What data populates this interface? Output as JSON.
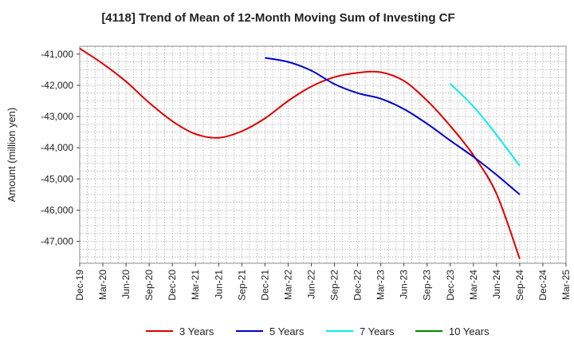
{
  "chart_data": {
    "type": "line",
    "title": "[4118]  Trend of Mean of 12-Month Moving Sum of Investing CF",
    "xlabel": "",
    "ylabel": "Amount (million yen)",
    "categories": [
      "Dec-19",
      "Mar-20",
      "Jun-20",
      "Sep-20",
      "Dec-20",
      "Mar-21",
      "Jun-21",
      "Sep-21",
      "Dec-21",
      "Mar-22",
      "Jun-22",
      "Sep-22",
      "Dec-22",
      "Mar-23",
      "Jun-23",
      "Sep-23",
      "Dec-23",
      "Mar-24",
      "Jun-24",
      "Sep-24",
      "Dec-24",
      "Mar-25"
    ],
    "ylim": [
      -47700,
      -40750
    ],
    "yticks": [
      -41000,
      -42000,
      -43000,
      -44000,
      -45000,
      -46000,
      -47000
    ],
    "ytick_labels": [
      "-41,000",
      "-42,000",
      "-43,000",
      "-44,000",
      "-45,000",
      "-46,000",
      "-47,000"
    ],
    "grid": true,
    "legend_position": "bottom",
    "series": [
      {
        "name": "3 Years",
        "color": "#dd0000",
        "values": [
          -40820,
          -41310,
          -41880,
          -42560,
          -43150,
          -43560,
          -43680,
          -43470,
          -43060,
          -42500,
          -42040,
          -41740,
          -41600,
          -41580,
          -41860,
          -42490,
          -43300,
          -44240,
          -45480,
          -47560,
          null,
          null
        ]
      },
      {
        "name": "5 Years",
        "color": "#0000cc",
        "values": [
          null,
          null,
          null,
          null,
          null,
          null,
          null,
          null,
          -41120,
          -41250,
          -41530,
          -41960,
          -42250,
          -42430,
          -42760,
          -43230,
          -43770,
          -44290,
          -44870,
          -45500,
          null,
          null
        ]
      },
      {
        "name": "7 Years",
        "color": "#00eeee",
        "values": [
          null,
          null,
          null,
          null,
          null,
          null,
          null,
          null,
          null,
          null,
          null,
          null,
          null,
          null,
          null,
          null,
          -41950,
          -42680,
          -43590,
          -44580,
          null,
          null
        ]
      },
      {
        "name": "10 Years",
        "color": "#008800",
        "values": [
          null,
          null,
          null,
          null,
          null,
          null,
          null,
          null,
          null,
          null,
          null,
          null,
          null,
          null,
          null,
          null,
          null,
          null,
          null,
          null,
          null,
          null
        ]
      }
    ]
  }
}
